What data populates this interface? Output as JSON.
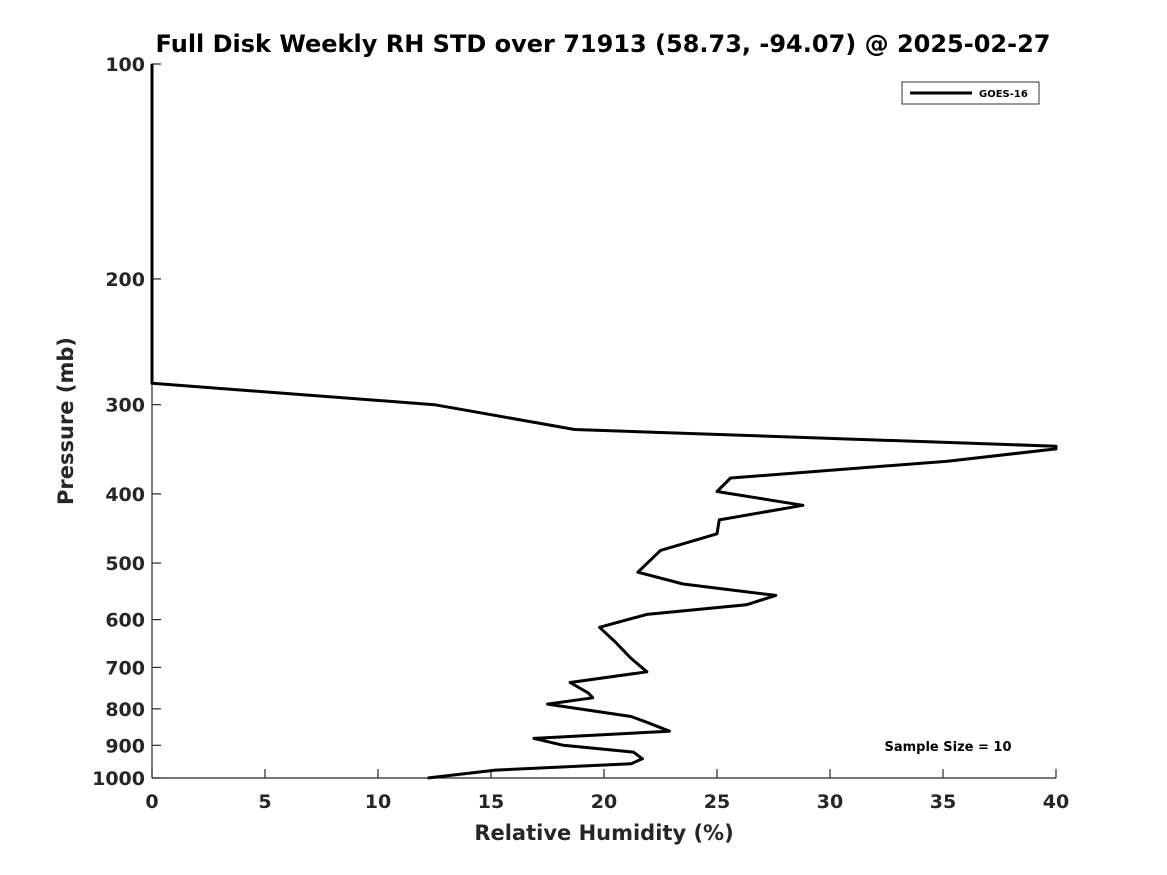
{
  "chart_data": {
    "type": "line",
    "title": "Full Disk Weekly RH STD over 71913 (58.73, -94.07) @ 2025-02-27",
    "xlabel": "Relative Humidity (%)",
    "ylabel": "Pressure (mb)",
    "xlim": [
      0,
      40
    ],
    "ylim": [
      100,
      1000
    ],
    "y_scale": "log",
    "y_reversed": true,
    "grid": false,
    "legend_position": "top-right",
    "x_ticks": [
      "0",
      "5",
      "10",
      "15",
      "20",
      "25",
      "30",
      "35",
      "40"
    ],
    "y_ticks": [
      "100",
      "200",
      "300",
      "400",
      "500",
      "600",
      "700",
      "800",
      "900",
      "1000"
    ],
    "annotation": "Sample Size = 10",
    "series": [
      {
        "name": "GOES-16",
        "color": "#000000",
        "x": [
          0,
          0,
          0,
          0,
          0,
          0,
          0,
          0,
          0,
          12.5,
          18.7,
          40.0,
          40.0,
          35.2,
          25.6,
          25.0,
          28.8,
          25.1,
          25.0,
          22.5,
          21.5,
          23.5,
          27.6,
          26.3,
          21.9,
          19.8,
          20.5,
          21.2,
          21.9,
          18.5,
          19.3,
          19.5,
          17.5,
          21.2,
          22.0,
          22.9,
          16.9,
          18.2,
          21.3,
          21.7,
          21.2,
          15.2,
          12.2
        ],
        "y": [
          100,
          125,
          150,
          175,
          200,
          225,
          250,
          275,
          280,
          300,
          325,
          343,
          346,
          360,
          380,
          397,
          415,
          435,
          455,
          480,
          515,
          535,
          555,
          572,
          590,
          615,
          645,
          680,
          710,
          735,
          760,
          772,
          788,
          820,
          838,
          860,
          880,
          900,
          920,
          940,
          955,
          975,
          1000
        ]
      }
    ]
  }
}
